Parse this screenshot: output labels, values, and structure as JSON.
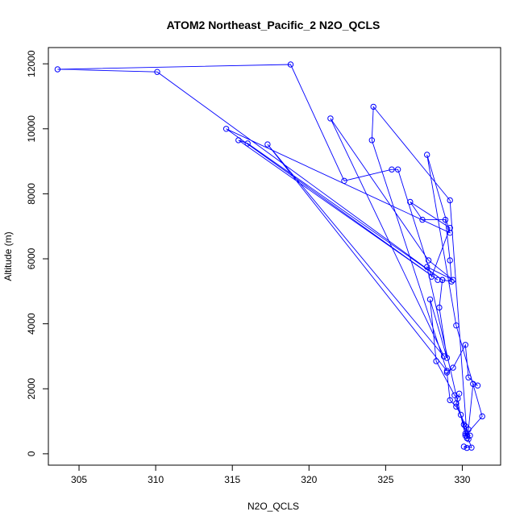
{
  "chart_data": {
    "type": "line",
    "title": "ATOM2 Northeast_Pacific_2 N2O_QCLS",
    "xlabel": "N2O_QCLS",
    "ylabel": "Altitude (m)",
    "xlim": [
      303,
      332.5
    ],
    "ylim": [
      -350,
      12500
    ],
    "xticks": [
      305,
      310,
      315,
      320,
      325,
      330
    ],
    "yticks": [
      0,
      2000,
      4000,
      6000,
      8000,
      10000,
      12000
    ],
    "grid": false,
    "marker": "open-circle",
    "color": "#0000ff",
    "series": [
      {
        "x": [
          330.3,
          330.1,
          330.6,
          330.4,
          330.2,
          330.5,
          330.2,
          329.9,
          329.6,
          329.2,
          329.0,
          329.4,
          330.2,
          330.4,
          331.0,
          330.7,
          330.4,
          330.3,
          330.1,
          329.6,
          329.8,
          329.7,
          329.5,
          328.3,
          327.9,
          329.0,
          328.5,
          328.7,
          329.3,
          329.2,
          328.9,
          327.4,
          326.6,
          329.2,
          328.0,
          325.8,
          325.4,
          322.3,
          318.8,
          303.6,
          310.1,
          328.7,
          316.0,
          315.4,
          328.4,
          314.6,
          329.2,
          327.7,
          329.6,
          331.3,
          330.2,
          327.7,
          329.4,
          327.8,
          321.4,
          328.8,
          317.3,
          329.0,
          324.1,
          324.2,
          329.2,
          330.3
        ],
        "y": [
          180,
          220,
          190,
          450,
          620,
          560,
          850,
          1200,
          1450,
          1650,
          2500,
          2650,
          3350,
          2350,
          2100,
          2150,
          750,
          480,
          900,
          1550,
          1850,
          1700,
          1800,
          2850,
          4750,
          2950,
          4500,
          5350,
          5300,
          5950,
          7200,
          7200,
          7750,
          6950,
          5450,
          8750,
          8750,
          8400,
          11980,
          11830,
          11750,
          5350,
          9550,
          9650,
          5350,
          10000,
          6800,
          9200,
          3950,
          1150,
          560,
          5750,
          5350,
          5950,
          10320,
          3000,
          9520,
          2550,
          9650,
          10680,
          7800,
          550
        ]
      }
    ]
  }
}
